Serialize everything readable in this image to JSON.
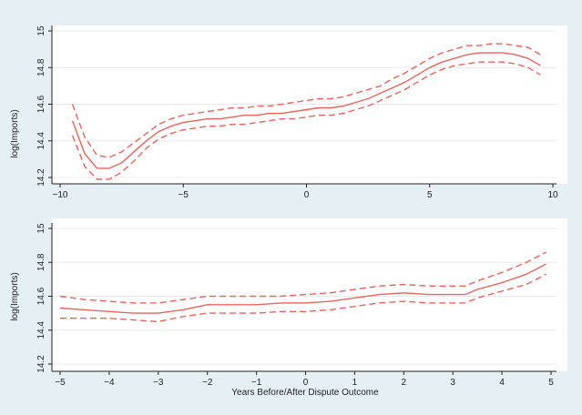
{
  "colors": {
    "background": "#e6eff3",
    "plot_bg": "#ffffff",
    "grid": "#e8e8e8",
    "axis": "#222222",
    "line": "#e8645d"
  },
  "chart_data": [
    {
      "type": "line",
      "xlabel": "",
      "ylabel": "log(Imports)",
      "xlim": [
        -10,
        10
      ],
      "ylim": [
        14.2,
        15
      ],
      "xticks": [
        -10,
        -5,
        0,
        5,
        10
      ],
      "yticks": [
        14.2,
        14.4,
        14.6,
        14.8,
        15
      ],
      "grid": "horizontal",
      "series": [
        {
          "role": "estimate",
          "x": [
            -9.5,
            -9,
            -8.5,
            -8,
            -7.5,
            -7,
            -6.5,
            -6,
            -5.5,
            -5,
            -4.5,
            -4,
            -3.5,
            -3,
            -2.5,
            -2,
            -1.5,
            -1,
            -0.5,
            0,
            0.5,
            1,
            1.5,
            2,
            2.5,
            3,
            3.5,
            4,
            4.5,
            5,
            5.5,
            6,
            6.5,
            7,
            7.5,
            8,
            8.5,
            9,
            9.5
          ],
          "y": [
            14.51,
            14.33,
            14.25,
            14.25,
            14.28,
            14.34,
            14.4,
            14.45,
            14.48,
            14.5,
            14.51,
            14.52,
            14.52,
            14.53,
            14.54,
            14.54,
            14.55,
            14.55,
            14.56,
            14.57,
            14.58,
            14.58,
            14.59,
            14.61,
            14.63,
            14.66,
            14.69,
            14.72,
            14.76,
            14.8,
            14.83,
            14.85,
            14.87,
            14.88,
            14.88,
            14.88,
            14.87,
            14.85,
            14.81
          ]
        },
        {
          "role": "upper-ci",
          "x": [
            -9.5,
            -9,
            -8.5,
            -8,
            -7.5,
            -7,
            -6.5,
            -6,
            -5.5,
            -5,
            -4.5,
            -4,
            -3.5,
            -3,
            -2.5,
            -2,
            -1.5,
            -1,
            -0.5,
            0,
            0.5,
            1,
            1.5,
            2,
            2.5,
            3,
            3.5,
            4,
            4.5,
            5,
            5.5,
            6,
            6.5,
            7,
            7.5,
            8,
            8.5,
            9,
            9.5
          ],
          "y": [
            14.6,
            14.42,
            14.32,
            14.31,
            14.34,
            14.39,
            14.44,
            14.49,
            14.52,
            14.54,
            14.55,
            14.56,
            14.57,
            14.58,
            14.58,
            14.59,
            14.59,
            14.6,
            14.61,
            14.62,
            14.63,
            14.63,
            14.64,
            14.66,
            14.68,
            14.7,
            14.74,
            14.77,
            14.81,
            14.85,
            14.88,
            14.9,
            14.92,
            14.92,
            14.93,
            14.93,
            14.92,
            14.91,
            14.87
          ]
        },
        {
          "role": "lower-ci",
          "x": [
            -9.5,
            -9,
            -8.5,
            -8,
            -7.5,
            -7,
            -6.5,
            -6,
            -5.5,
            -5,
            -4.5,
            -4,
            -3.5,
            -3,
            -2.5,
            -2,
            -1.5,
            -1,
            -0.5,
            0,
            0.5,
            1,
            1.5,
            2,
            2.5,
            3,
            3.5,
            4,
            4.5,
            5,
            5.5,
            6,
            6.5,
            7,
            7.5,
            8,
            8.5,
            9,
            9.5
          ],
          "y": [
            14.43,
            14.26,
            14.19,
            14.19,
            14.23,
            14.29,
            14.36,
            14.41,
            14.44,
            14.46,
            14.47,
            14.48,
            14.48,
            14.49,
            14.49,
            14.5,
            14.51,
            14.52,
            14.52,
            14.53,
            14.54,
            14.54,
            14.55,
            14.57,
            14.59,
            14.62,
            14.65,
            14.68,
            14.72,
            14.76,
            14.79,
            14.81,
            14.82,
            14.83,
            14.83,
            14.83,
            14.82,
            14.8,
            14.76
          ]
        }
      ]
    },
    {
      "type": "line",
      "xlabel": "Years Before/After Dispute Outcome",
      "ylabel": "log(Imports)",
      "xlim": [
        -5,
        5
      ],
      "ylim": [
        14.2,
        15
      ],
      "xticks": [
        -5,
        -4,
        -3,
        -2,
        -1,
        0,
        1,
        2,
        3,
        4,
        5
      ],
      "yticks": [
        14.2,
        14.4,
        14.6,
        14.8,
        15
      ],
      "grid": "horizontal",
      "series": [
        {
          "role": "estimate",
          "x": [
            -5,
            -4.5,
            -4,
            -3.5,
            -3,
            -2.5,
            -2,
            -1.5,
            -1,
            -0.5,
            0,
            0.5,
            1,
            1.5,
            2,
            2.5,
            3,
            3.25,
            3.5,
            4,
            4.5,
            4.9
          ],
          "y": [
            14.53,
            14.52,
            14.51,
            14.5,
            14.5,
            14.52,
            14.55,
            14.55,
            14.55,
            14.56,
            14.56,
            14.57,
            14.59,
            14.61,
            14.62,
            14.61,
            14.61,
            14.61,
            14.64,
            14.68,
            14.73,
            14.79
          ]
        },
        {
          "role": "upper-ci",
          "x": [
            -5,
            -4.5,
            -4,
            -3.5,
            -3,
            -2.5,
            -2,
            -1.5,
            -1,
            -0.5,
            0,
            0.5,
            1,
            1.5,
            2,
            2.5,
            3,
            3.25,
            3.5,
            4,
            4.5,
            4.9
          ],
          "y": [
            14.6,
            14.58,
            14.57,
            14.56,
            14.56,
            14.58,
            14.6,
            14.6,
            14.6,
            14.6,
            14.61,
            14.62,
            14.64,
            14.66,
            14.67,
            14.66,
            14.66,
            14.66,
            14.69,
            14.74,
            14.8,
            14.86
          ]
        },
        {
          "role": "lower-ci",
          "x": [
            -5,
            -4.5,
            -4,
            -3.5,
            -3,
            -2.5,
            -2,
            -1.5,
            -1,
            -0.5,
            0,
            0.5,
            1,
            1.5,
            2,
            2.5,
            3,
            3.25,
            3.5,
            4,
            4.5,
            4.9
          ],
          "y": [
            14.47,
            14.47,
            14.47,
            14.46,
            14.45,
            14.48,
            14.5,
            14.5,
            14.5,
            14.51,
            14.51,
            14.52,
            14.54,
            14.56,
            14.57,
            14.56,
            14.56,
            14.56,
            14.59,
            14.63,
            14.67,
            14.73
          ]
        }
      ]
    }
  ]
}
